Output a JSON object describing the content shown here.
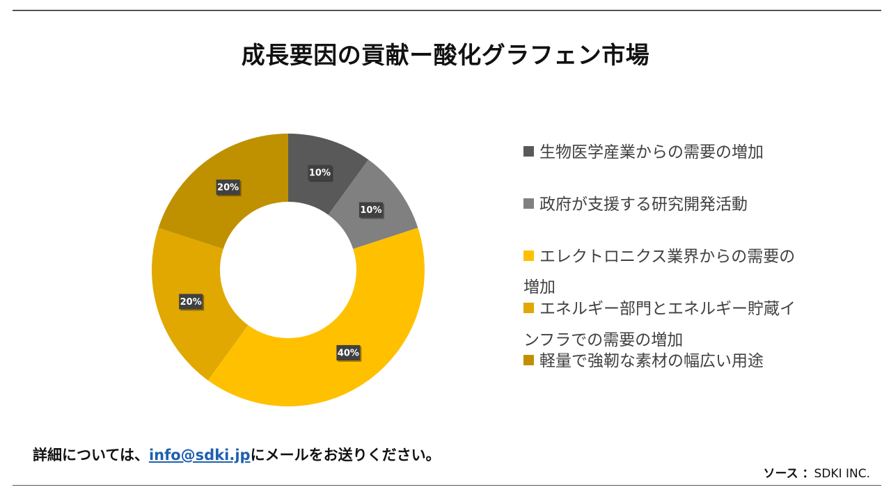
{
  "title": "成長要因の貢献ー酸化グラフェン市場",
  "footer": {
    "note_before": "詳細については、",
    "email": "info@sdki.jp",
    "note_after": "にメールをお送りください。"
  },
  "source": {
    "label": "ソース ：",
    "value": "SDKI INC."
  },
  "chart_data": {
    "type": "pie",
    "subtype": "donut",
    "title": "成長要因の貢献ー酸化グラフェン市場",
    "series": [
      {
        "name": "生物医学産業からの需要の増加",
        "value": 10,
        "label": "10%",
        "color": "#595959"
      },
      {
        "name": "政府が支援する研究開発活動",
        "value": 10,
        "label": "10%",
        "color": "#808080"
      },
      {
        "name": "エレクトロニクス業界からの需要の増加",
        "value": 40,
        "label": "40%",
        "color": "#FFC000"
      },
      {
        "name": "エネルギー部門とエネルギー貯蔵インフラでの需要の増加",
        "value": 20,
        "label": "20%",
        "color": "#E0A800"
      },
      {
        "name": "軽量で強靭な素材の幅広い用途",
        "value": 20,
        "label": "20%",
        "color": "#BF9000"
      }
    ],
    "legend_position": "right",
    "legend": [
      {
        "line1": "生物医学産業からの需要の増加",
        "line2": ""
      },
      {
        "line1": "政府が支援する研究開発活動",
        "line2": ""
      },
      {
        "line1": "エレクトロニクス業界からの需要の",
        "line2": "増加"
      },
      {
        "line1": "エネルギー部門とエネルギー貯蔵イ",
        "line2": "ンフラでの需要の増加"
      },
      {
        "line1": "軽量で強靭な素材の幅広い用途",
        "line2": ""
      }
    ]
  }
}
